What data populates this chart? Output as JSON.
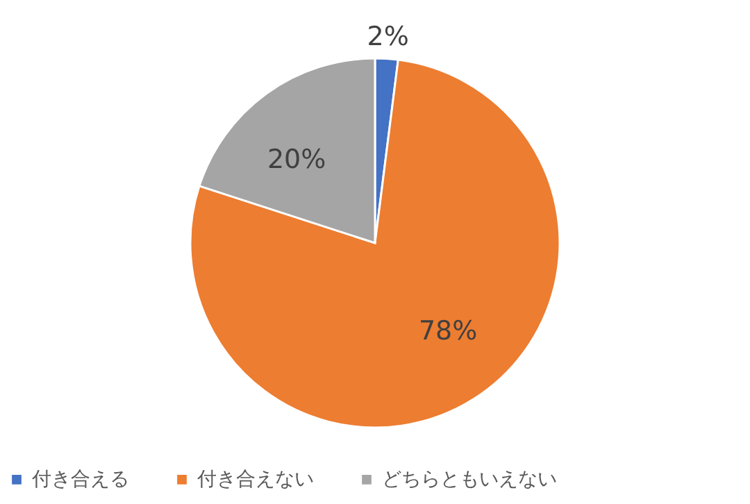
{
  "chart_data": {
    "type": "pie",
    "categories": [
      "付き合える",
      "付き合えない",
      "どちらともいえない"
    ],
    "values": [
      2,
      78,
      20
    ],
    "colors": [
      "#4472c4",
      "#ed7d31",
      "#a5a5a5"
    ],
    "value_labels": [
      "2%",
      "78%",
      "20%"
    ],
    "legend": "bottom"
  }
}
